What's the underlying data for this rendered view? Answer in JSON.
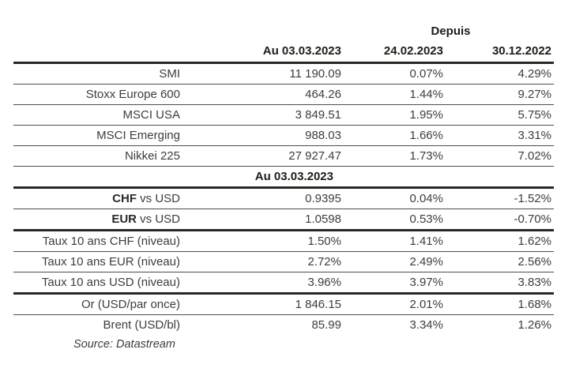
{
  "header": {
    "depuis": "Depuis",
    "au": "Au 03.03.2023",
    "since_1": "24.02.2023",
    "since_2": "30.12.2022"
  },
  "section_header": "Au 03.03.2023",
  "currencies": [
    {
      "bold": "CHF",
      "rest": " vs USD"
    },
    {
      "bold": "EUR",
      "rest": " vs USD"
    }
  ],
  "source_note": "Source: Datastream",
  "colors": {
    "thick_rule": "#2b2722",
    "thin_rule": "#4d4d4b",
    "header_text": "#1c1c1a",
    "body_text": "#3d3d3c"
  },
  "chart_data": {
    "type": "table",
    "title": "",
    "columns": [
      "",
      "Au 03.03.2023",
      "Depuis 24.02.2023",
      "Depuis 30.12.2022"
    ],
    "header_group_label": "Depuis",
    "mid_section_header": "Au 03.03.2023",
    "rows": [
      [
        "SMI",
        "11 190.09",
        "0.07%",
        "4.29%"
      ],
      [
        "Stoxx Europe 600",
        "464.26",
        "1.44%",
        "9.27%"
      ],
      [
        "MSCI USA",
        "3 849.51",
        "1.95%",
        "5.75%"
      ],
      [
        "MSCI Emerging",
        "988.03",
        "1.66%",
        "3.31%"
      ],
      [
        "Nikkei 225",
        "27 927.47",
        "1.73%",
        "7.02%"
      ],
      [
        "CHF vs USD",
        "0.9395",
        "0.04%",
        "-1.52%"
      ],
      [
        "EUR vs USD",
        "1.0598",
        "0.53%",
        "-0.70%"
      ],
      [
        "Taux 10 ans CHF (niveau)",
        "1.50%",
        "1.41%",
        "1.62%"
      ],
      [
        "Taux 10 ans EUR (niveau)",
        "2.72%",
        "2.49%",
        "2.56%"
      ],
      [
        "Taux 10 ans USD (niveau)",
        "3.96%",
        "3.97%",
        "3.83%"
      ],
      [
        "Or (USD/par once)",
        "1 846.15",
        "2.01%",
        "1.68%"
      ],
      [
        "Brent (USD/bl)",
        "85.99",
        "3.34%",
        "1.26%"
      ]
    ],
    "source_note": "Source: Datastream"
  }
}
